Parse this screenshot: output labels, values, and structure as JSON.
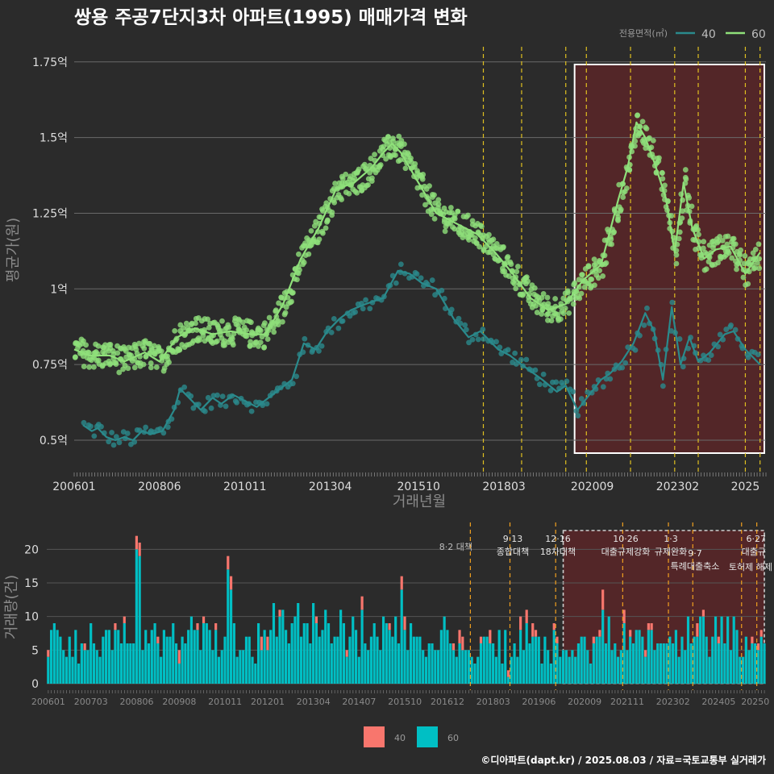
{
  "title": "쌍용 주공7단지3차 아파트(1995) 매매가격 변화",
  "footer": "©디아파트(dapt.kr) / 2025.08.03 / 자료=국토교통부 실거래가",
  "colors": {
    "background": "#2b2b2b",
    "series_40": "#2a8a8c",
    "series_60": "#8fe07a",
    "vol_40": "#f8766d",
    "vol_60": "#00bfc4",
    "policy_line": "#e0c020",
    "highlight_fill": "#5a2628"
  },
  "chart_data": [
    {
      "type": "line",
      "title": "쌍용 주공7단지3차 아파트(1995) 매매가격 변화",
      "xlabel": "거래년월",
      "ylabel": "평균가(원)",
      "x_ticks": [
        "200601",
        "200806",
        "201011",
        "201304",
        "201510",
        "201803",
        "202009",
        "202302",
        "2025"
      ],
      "y_ticks": [
        "0.5억",
        "0.75억",
        "1억",
        "1.25억",
        "1.5억",
        "1.75억"
      ],
      "y_tick_values": [
        0.5,
        0.75,
        1.0,
        1.25,
        1.5,
        1.75
      ],
      "xlim": [
        "2006-01",
        "2025-08"
      ],
      "ylim": [
        0.42,
        1.8
      ],
      "y_unit": "억",
      "legend": {
        "title": "전용면적(㎡)",
        "entries": [
          "40",
          "60"
        ],
        "placement": "top-right"
      },
      "policy_lines": [
        "2017-08",
        "2018-09",
        "2019-12",
        "2020-07",
        "2021-10",
        "2023-01",
        "2023-09",
        "2025-01",
        "2025-06"
      ],
      "highlight_range": [
        "2020-03",
        "2025-08"
      ],
      "series": [
        {
          "name": "40",
          "points": [
            [
              "2006-04",
              0.55
            ],
            [
              "2006-07",
              0.53
            ],
            [
              "2006-09",
              0.54
            ],
            [
              "2006-12",
              0.51
            ],
            [
              "2007-03",
              0.5
            ],
            [
              "2007-06",
              0.51
            ],
            [
              "2007-09",
              0.5
            ],
            [
              "2007-12",
              0.53
            ],
            [
              "2008-03",
              0.52
            ],
            [
              "2008-07",
              0.53
            ],
            [
              "2008-11",
              0.6
            ],
            [
              "2009-01",
              0.67
            ],
            [
              "2009-04",
              0.64
            ],
            [
              "2009-08",
              0.6
            ],
            [
              "2009-12",
              0.64
            ],
            [
              "2010-03",
              0.62
            ],
            [
              "2010-07",
              0.65
            ],
            [
              "2010-11",
              0.63
            ],
            [
              "2011-03",
              0.61
            ],
            [
              "2011-07",
              0.64
            ],
            [
              "2011-11",
              0.67
            ],
            [
              "2012-03",
              0.7
            ],
            [
              "2012-07",
              0.82
            ],
            [
              "2012-11",
              0.8
            ],
            [
              "2013-03",
              0.86
            ],
            [
              "2013-07",
              0.9
            ],
            [
              "2013-11",
              0.93
            ],
            [
              "2014-04",
              0.95
            ],
            [
              "2014-10",
              0.97
            ],
            [
              "2015-03",
              1.06
            ],
            [
              "2015-07",
              1.05
            ],
            [
              "2015-11",
              1.02
            ],
            [
              "2016-04",
              1.0
            ],
            [
              "2016-10",
              0.9
            ],
            [
              "2017-03",
              0.84
            ],
            [
              "2017-07",
              0.86
            ],
            [
              "2018-01",
              0.8
            ],
            [
              "2018-05",
              0.78
            ],
            [
              "2018-09",
              0.75
            ],
            [
              "2019-04",
              0.7
            ],
            [
              "2019-09",
              0.66
            ],
            [
              "2019-12",
              0.68
            ],
            [
              "2020-04",
              0.6
            ],
            [
              "2020-08",
              0.65
            ],
            [
              "2020-12",
              0.7
            ],
            [
              "2021-03",
              0.72
            ],
            [
              "2021-07",
              0.76
            ],
            [
              "2021-11",
              0.82
            ],
            [
              "2022-03",
              0.92
            ],
            [
              "2022-06",
              0.86
            ],
            [
              "2022-09",
              0.7
            ],
            [
              "2022-12",
              0.94
            ],
            [
              "2023-03",
              0.75
            ],
            [
              "2023-06",
              0.84
            ],
            [
              "2023-09",
              0.76
            ],
            [
              "2024-01",
              0.79
            ],
            [
              "2024-06",
              0.85
            ],
            [
              "2024-09",
              0.86
            ],
            [
              "2025-01",
              0.8
            ],
            [
              "2025-06",
              0.75
            ]
          ]
        },
        {
          "name": "60",
          "points": [
            [
              "2006-01",
              0.8
            ],
            [
              "2006-06",
              0.78
            ],
            [
              "2007-01",
              0.78
            ],
            [
              "2007-06",
              0.76
            ],
            [
              "2008-01",
              0.79
            ],
            [
              "2008-06",
              0.76
            ],
            [
              "2008-12",
              0.84
            ],
            [
              "2009-06",
              0.87
            ],
            [
              "2009-12",
              0.85
            ],
            [
              "2010-06",
              0.86
            ],
            [
              "2011-01",
              0.85
            ],
            [
              "2011-06",
              0.85
            ],
            [
              "2011-12",
              0.95
            ],
            [
              "2012-06",
              1.1
            ],
            [
              "2012-12",
              1.2
            ],
            [
              "2013-06",
              1.33
            ],
            [
              "2013-12",
              1.35
            ],
            [
              "2014-06",
              1.4
            ],
            [
              "2014-10",
              1.45
            ],
            [
              "2015-01",
              1.48
            ],
            [
              "2015-04",
              1.45
            ],
            [
              "2015-10",
              1.35
            ],
            [
              "2016-04",
              1.25
            ],
            [
              "2016-10",
              1.22
            ],
            [
              "2017-06",
              1.18
            ],
            [
              "2017-12",
              1.12
            ],
            [
              "2018-06",
              1.05
            ],
            [
              "2018-12",
              0.97
            ],
            [
              "2019-06",
              0.93
            ],
            [
              "2019-12",
              0.95
            ],
            [
              "2020-06",
              1.03
            ],
            [
              "2020-12",
              1.08
            ],
            [
              "2021-06",
              1.3
            ],
            [
              "2021-09",
              1.4
            ],
            [
              "2021-12",
              1.55
            ],
            [
              "2022-03",
              1.5
            ],
            [
              "2022-06",
              1.42
            ],
            [
              "2022-10",
              1.3
            ],
            [
              "2023-01",
              1.12
            ],
            [
              "2023-04",
              1.35
            ],
            [
              "2023-07",
              1.2
            ],
            [
              "2023-11",
              1.1
            ],
            [
              "2024-03",
              1.13
            ],
            [
              "2024-08",
              1.14
            ],
            [
              "2025-01",
              1.05
            ],
            [
              "2025-06",
              1.12
            ]
          ]
        }
      ]
    },
    {
      "type": "bar",
      "stacked": true,
      "ylabel": "거래량(건)",
      "x_ticks": [
        "200601",
        "200703",
        "200806",
        "200908",
        "201011",
        "201201",
        "201304",
        "201407",
        "201510",
        "201612",
        "201803",
        "201906",
        "202009",
        "202111",
        "202302",
        "202405",
        "20250"
      ],
      "y_ticks": [
        "0",
        "5",
        "10",
        "15",
        "20"
      ],
      "ylim": [
        0,
        24
      ],
      "legend": {
        "entries": [
          "40",
          "60"
        ],
        "placement": "bottom"
      },
      "annotations": [
        {
          "date": "2017-08",
          "lines": [
            "8·2 대책"
          ]
        },
        {
          "date": "2018-09",
          "lines": [
            "9·13",
            "종합대책"
          ]
        },
        {
          "date": "2019-12",
          "lines": [
            "12·16",
            "18차대책"
          ]
        },
        {
          "date": "2021-10",
          "lines": [
            "10·26",
            "대출규제강화"
          ]
        },
        {
          "date": "2023-01",
          "lines": [
            "1·3",
            "규제완화"
          ]
        },
        {
          "date": "2023-09",
          "lines": [
            "9·7",
            "특례대출축소"
          ]
        },
        {
          "date": "2025-01",
          "lines": [
            "토허제 해제"
          ]
        },
        {
          "date": "2025-06",
          "lines": [
            "6·27",
            "대출규"
          ]
        }
      ],
      "series": [
        {
          "name": "40",
          "highlights": {
            "2008-06": 2,
            "2008-07": 2,
            "2010-12": 2,
            "2011-01": 2,
            "2015-09": 2,
            "2017-11": 1,
            "2021-03": 3
          }
        },
        {
          "name": "60",
          "highlights": {
            "2008-06": 20,
            "2008-07": 19,
            "2010-12": 17,
            "2011-01": 14,
            "2015-09": 14,
            "2017-11": 6,
            "2021-03": 11
          }
        }
      ]
    }
  ]
}
